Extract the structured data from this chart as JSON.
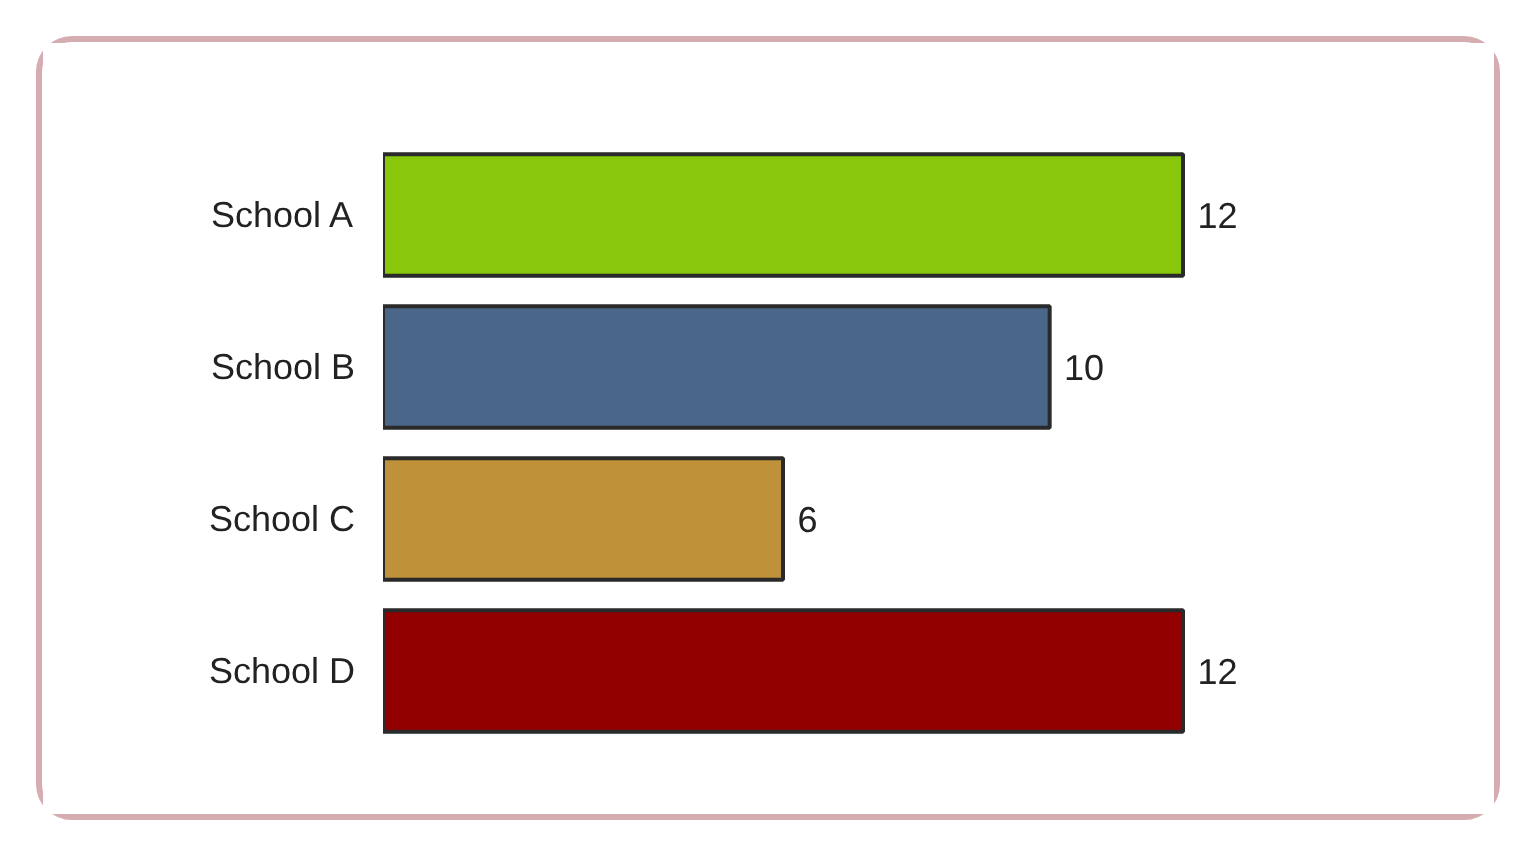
{
  "chart_data": {
    "type": "bar",
    "orientation": "horizontal",
    "categories": [
      "School A",
      "School B",
      "School C",
      "School D"
    ],
    "values": [
      12,
      10,
      6,
      12
    ],
    "colors": [
      "#88c70b",
      "#4a6689",
      "#bf9138",
      "#930000"
    ],
    "data_labels": true,
    "grid": false
  }
}
